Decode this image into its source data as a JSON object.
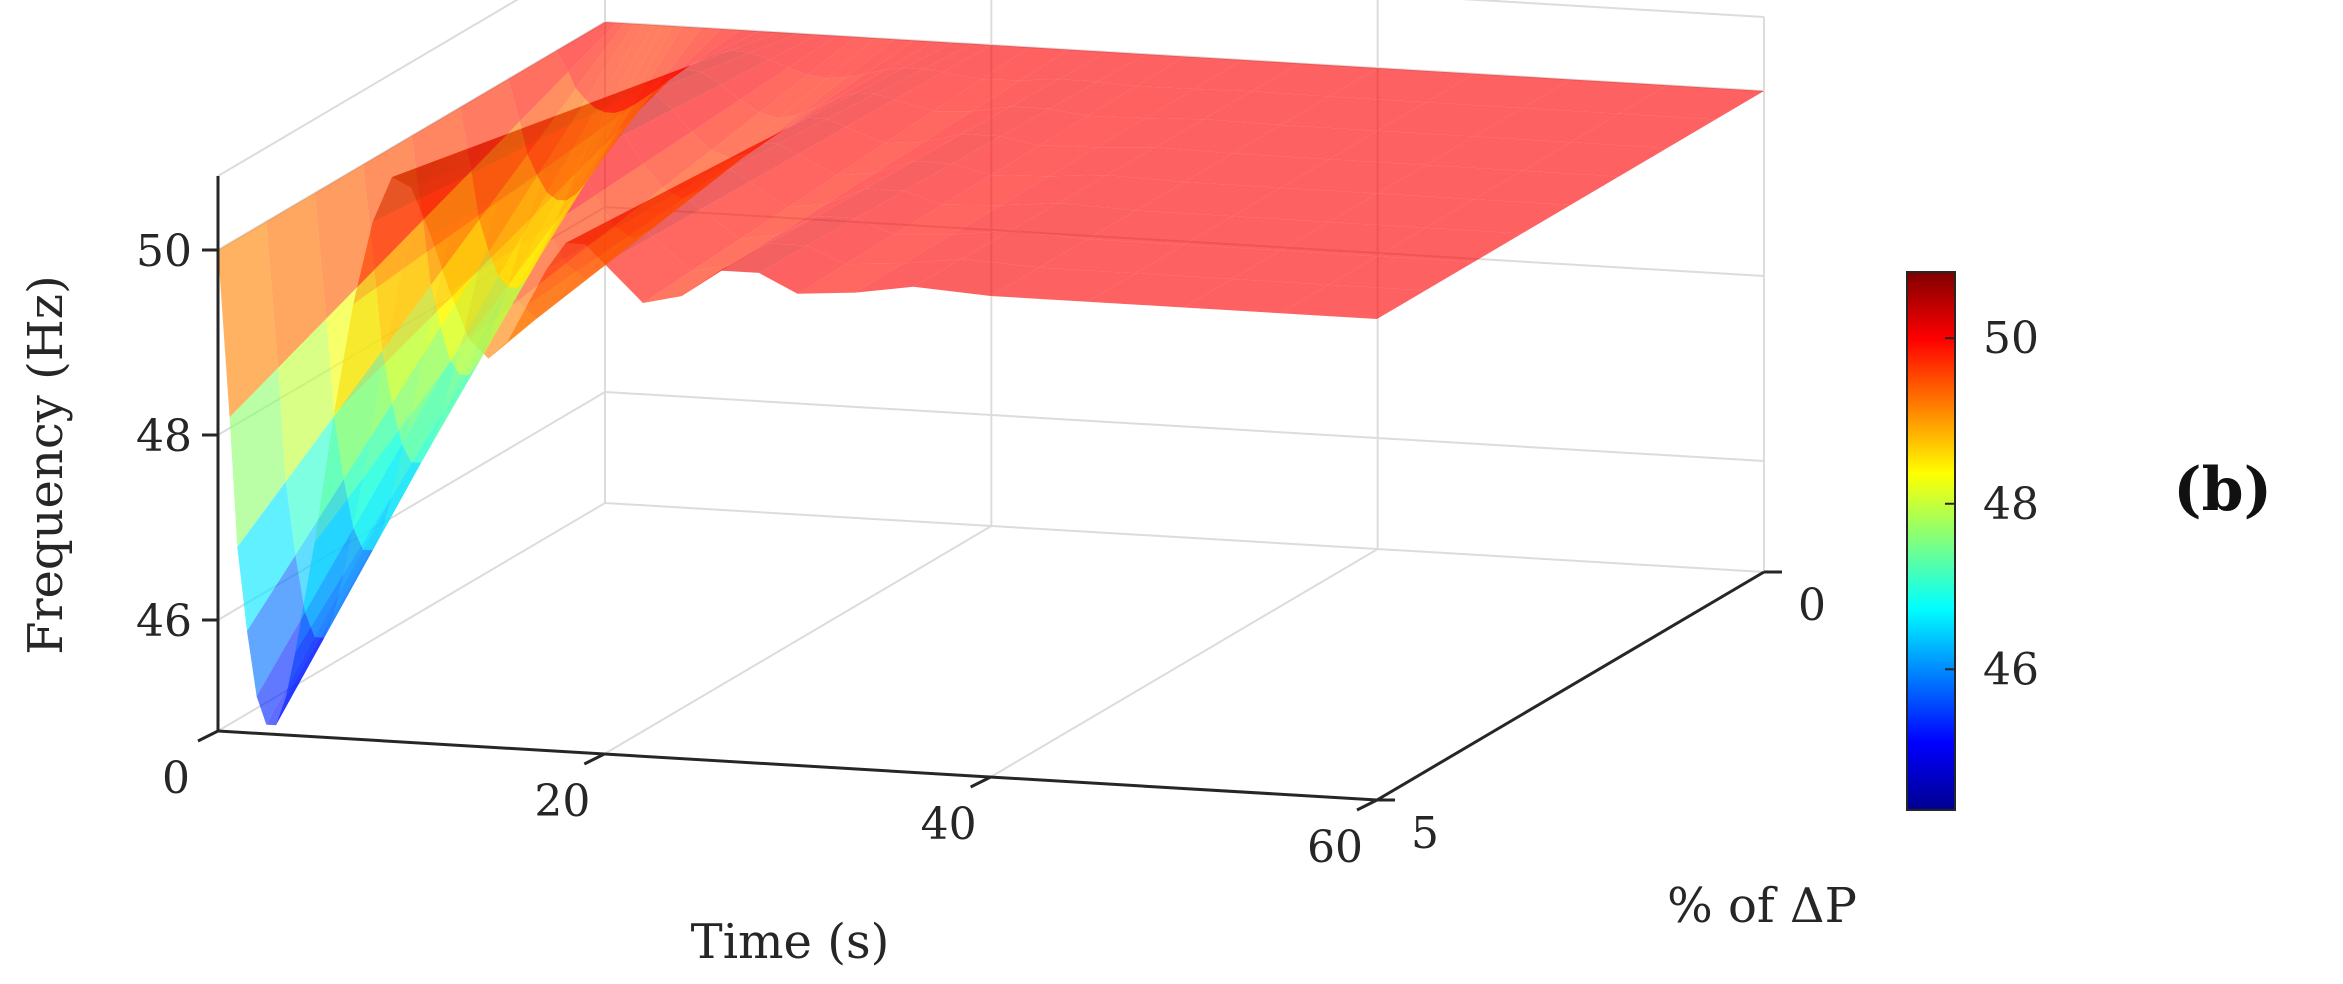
{
  "panel_label": "(b)",
  "chart_data": {
    "type": "surface",
    "title": "",
    "xlabel": "Time (s)",
    "ylabel": "% of ΔP",
    "zlabel": "Frequency (Hz)",
    "xlim": [
      0,
      60
    ],
    "ylim": [
      0,
      5
    ],
    "zlim": [
      44.8,
      50.8
    ],
    "x_ticks": [
      "0",
      "20",
      "40",
      "60"
    ],
    "y_ticks": [
      "0",
      "5"
    ],
    "z_ticks": [
      "46",
      "48",
      "50"
    ],
    "grid": true,
    "colormap": "jet",
    "colorbar": {
      "range": [
        44.3,
        50.8
      ],
      "ticks": [
        "46",
        "48",
        "50"
      ],
      "placement": "right"
    },
    "surface_profiles": {
      "time_s": [
        0,
        0.6,
        1,
        1.5,
        2,
        2.5,
        3,
        3.5,
        4,
        5,
        6,
        7,
        8,
        9,
        10,
        11,
        12,
        13,
        14,
        15,
        16,
        17,
        18,
        19,
        20,
        22,
        24,
        26,
        28,
        30,
        33,
        36,
        40,
        45,
        50,
        55,
        60
      ],
      "series": [
        {
          "delta_p_percent": 0,
          "frequency_hz": [
            50,
            50,
            50,
            50,
            50,
            50,
            50,
            50,
            50,
            50,
            50,
            50,
            50,
            50,
            50,
            50,
            50,
            50,
            50,
            50,
            50,
            50,
            50,
            50,
            50,
            50,
            50,
            50,
            50,
            50,
            50,
            50,
            50,
            50,
            50,
            50,
            50
          ]
        },
        {
          "delta_p_percent": 5,
          "frequency_hz": [
            50,
            48.2,
            46.8,
            45.9,
            45.2,
            44.9,
            44.9,
            45.2,
            45.7,
            46.9,
            48.3,
            49.5,
            50.4,
            50.9,
            50.8,
            50.3,
            49.7,
            49.2,
            49.0,
            49.2,
            49.6,
            50.0,
            50.3,
            50.3,
            50.1,
            49.7,
            49.8,
            50.1,
            50.1,
            49.9,
            49.95,
            50.05,
            50.0,
            50.0,
            50.0,
            50.0,
            50.0
          ]
        }
      ]
    }
  }
}
